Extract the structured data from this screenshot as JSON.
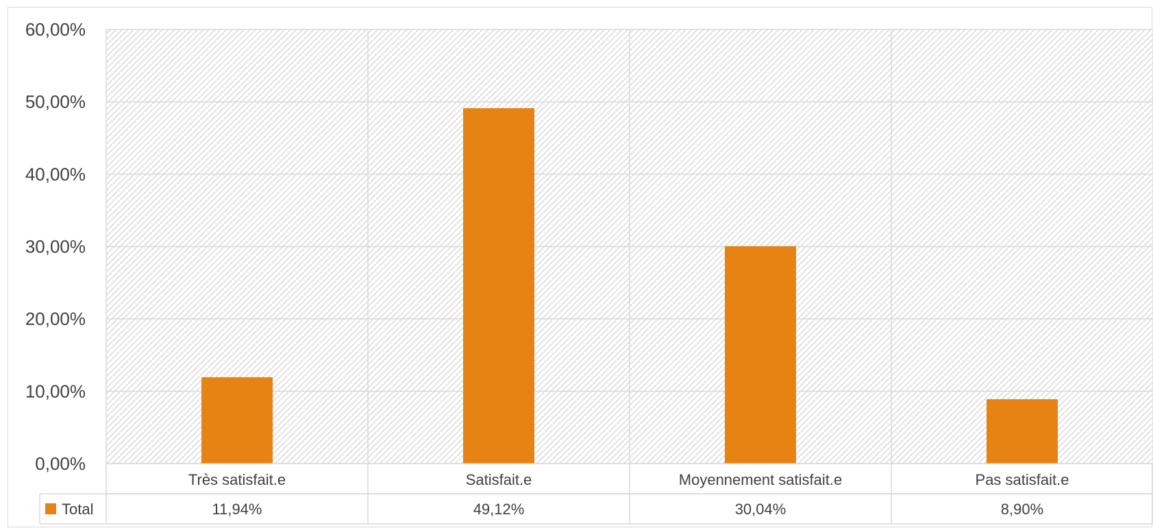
{
  "chart_data": {
    "type": "bar",
    "categories": [
      "Très satisfait.e",
      "Satisfait.e",
      "Moyennement satisfait.e",
      "Pas satisfait.e"
    ],
    "series": [
      {
        "name": "Total",
        "values": [
          11.94,
          49.12,
          30.04,
          8.9
        ],
        "labels": [
          "11,94%",
          "49,12%",
          "30,04%",
          "8,90%"
        ],
        "color": "#E68313"
      }
    ],
    "ylim": [
      0,
      60
    ],
    "yticks": [
      0,
      10,
      20,
      30,
      40,
      50,
      60
    ],
    "ytick_labels": [
      "0,00%",
      "10,00%",
      "20,00%",
      "30,00%",
      "40,00%",
      "50,00%",
      "60,00%"
    ],
    "grid": true,
    "plot_background": "hatched light gray",
    "legend": "data table below chart"
  }
}
